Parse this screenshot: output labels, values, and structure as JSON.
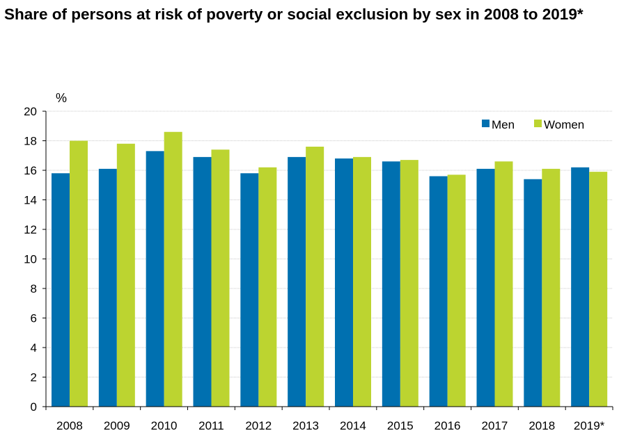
{
  "title": "Share of persons at risk of poverty or social exclusion by sex in 2008 to 2019*",
  "chart_data": {
    "type": "bar",
    "title": "Share of persons at risk of poverty or social exclusion by sex in 2008 to 2019*",
    "ylabel": "%",
    "xlabel": "",
    "ylim": [
      0,
      20
    ],
    "yticks": [
      "0",
      "2",
      "4",
      "6",
      "8",
      "10",
      "12",
      "14",
      "16",
      "18",
      "20"
    ],
    "categories": [
      "2008",
      "2009",
      "2010",
      "2011",
      "2012",
      "2013",
      "2014",
      "2015",
      "2016",
      "2017",
      "2018",
      "2019*"
    ],
    "series": [
      {
        "name": "Men",
        "color": "#0070b0",
        "values": [
          15.8,
          16.1,
          17.3,
          16.9,
          15.8,
          16.9,
          16.8,
          16.6,
          15.6,
          16.1,
          15.4,
          16.2
        ]
      },
      {
        "name": "Women",
        "color": "#bcd430",
        "values": [
          18.0,
          17.8,
          18.6,
          17.4,
          16.2,
          17.6,
          16.9,
          16.7,
          15.7,
          16.6,
          16.1,
          15.9
        ]
      }
    ],
    "grid": true,
    "legend_position": "top-right"
  }
}
